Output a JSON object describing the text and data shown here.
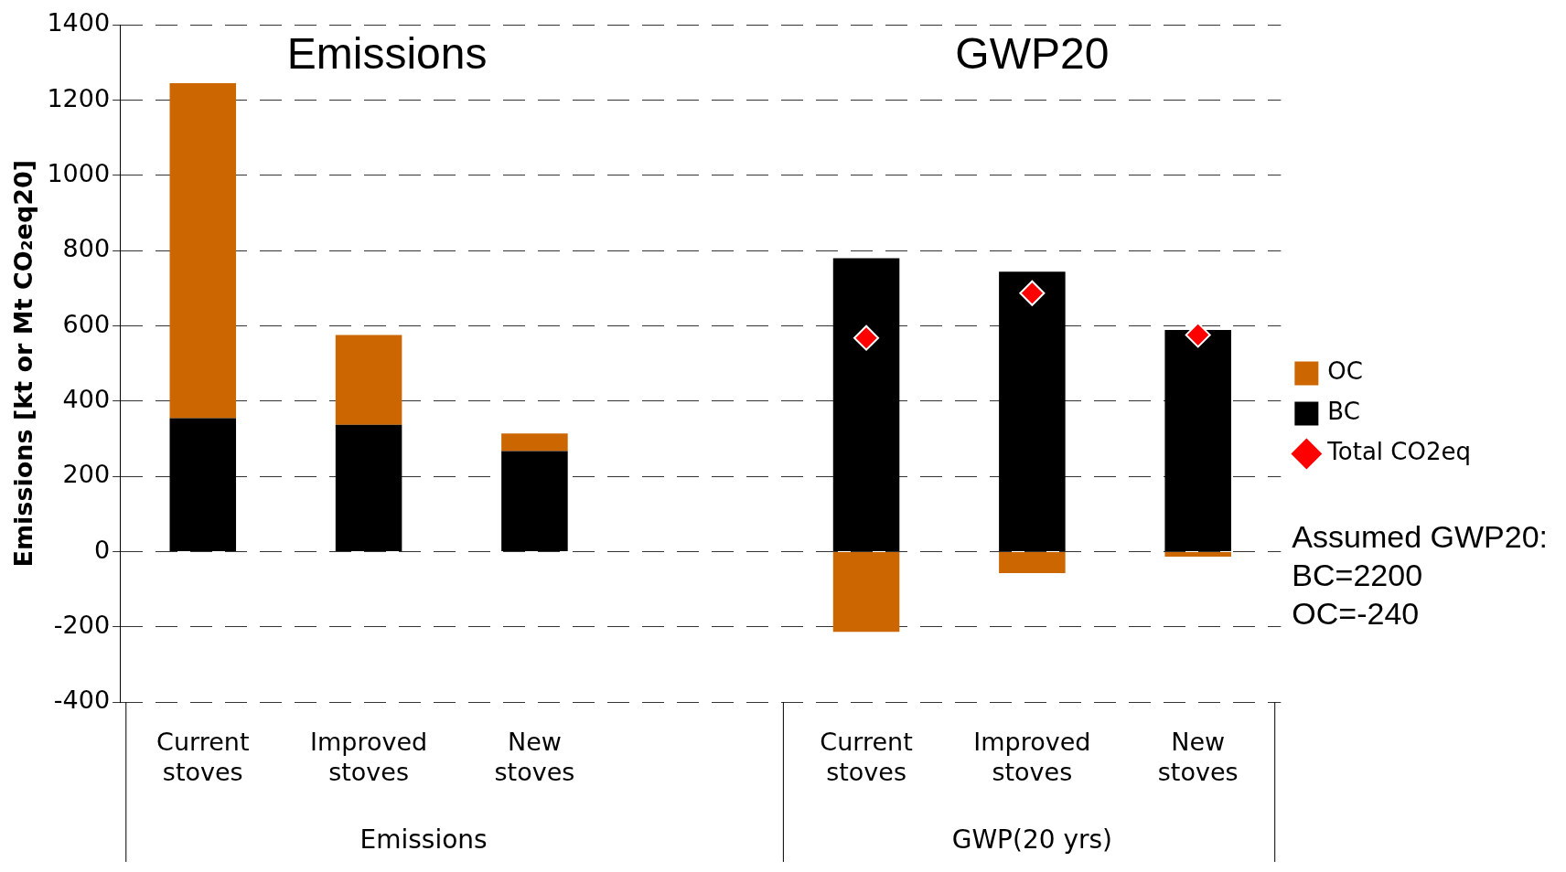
{
  "chart_data": {
    "type": "bar",
    "stacked": true,
    "ylabel": "Emissions [kt or Mt CO₂eq20]",
    "categories": [
      "Current stoves",
      "Improved stoves",
      "New stoves",
      null,
      "Current stoves",
      "Improved stoves",
      "New stoves"
    ],
    "series": [
      {
        "name": "BC",
        "color": "#000000",
        "values": [
          355,
          337,
          267,
          null,
          780,
          744,
          589
        ]
      },
      {
        "name": "OC",
        "color": "#cc6600",
        "values": [
          890,
          239,
          47,
          null,
          -213,
          -57,
          -13
        ]
      },
      {
        "name": "Total CO2eq",
        "type": "scatter",
        "color": "#ff0000",
        "marker": "diamond",
        "values": [
          null,
          null,
          null,
          null,
          568,
          687,
          576
        ]
      }
    ],
    "ylim": [
      -400,
      1400
    ],
    "yticks": [
      -400,
      -200,
      0,
      200,
      400,
      600,
      800,
      1000,
      1200,
      1400
    ],
    "grid": "y",
    "legend": "right",
    "annotations": [
      "Emissions",
      "GWP20",
      "Emissions",
      "GWP(20 yrs)",
      "Assumed GWP20:\nBC=2200\nOC=-240"
    ]
  }
}
